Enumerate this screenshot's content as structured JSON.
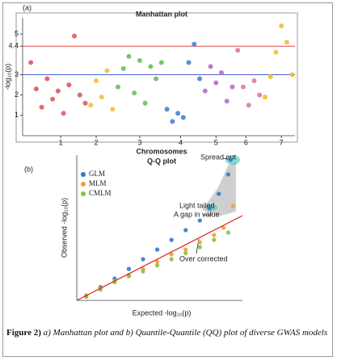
{
  "chart_data": [
    {
      "type": "scatter",
      "panel": "(a)",
      "title": "Manhattan plot",
      "xlabel": "Chromosomes",
      "ylabel": "-log₁₀(p)",
      "xlim": [
        0,
        100
      ],
      "ylim": [
        0,
        5.8
      ],
      "xticks": [
        {
          "value": 14,
          "label": "1"
        },
        {
          "value": 27,
          "label": "2"
        },
        {
          "value": 43,
          "label": "3"
        },
        {
          "value": 58,
          "label": "4"
        },
        {
          "value": 71,
          "label": "5"
        },
        {
          "value": 82,
          "label": "6"
        },
        {
          "value": 95,
          "label": "7"
        }
      ],
      "yticks": [
        1,
        2,
        3,
        {
          "value": 4.4,
          "label": "4.4"
        },
        5
      ],
      "thresholds": [
        {
          "value": 4.4,
          "color": "#e04848"
        },
        {
          "value": 3,
          "color": "#5060d8"
        }
      ],
      "series": [
        {
          "color": "#e05a5a",
          "x": [
            3,
            5,
            7,
            9,
            11,
            13,
            15,
            17,
            19,
            21,
            23
          ],
          "values": [
            3.6,
            2.3,
            1.4,
            2.8,
            1.8,
            2.2,
            1.1,
            2.5,
            4.9,
            2.0,
            1.6
          ]
        },
        {
          "color": "#f0c040",
          "x": [
            25,
            27,
            29,
            31,
            33
          ],
          "values": [
            1.5,
            2.7,
            1.9,
            3.2,
            1.3
          ]
        },
        {
          "color": "#6abf5e",
          "x": [
            35,
            37,
            39,
            41,
            43,
            45,
            47,
            49,
            51
          ],
          "values": [
            2.4,
            3.3,
            3.9,
            2.1,
            3.7,
            1.6,
            3.4,
            2.8,
            3.6
          ]
        },
        {
          "color": "#4a7fd0",
          "x": [
            53,
            55,
            57,
            59,
            61,
            63,
            65
          ],
          "values": [
            1.3,
            0.7,
            1.1,
            0.9,
            3.6,
            4.5,
            2.8
          ]
        },
        {
          "color": "#b070c8",
          "x": [
            67,
            69,
            71,
            73,
            75,
            77
          ],
          "values": [
            2.2,
            3.4,
            2.6,
            3.1,
            1.7,
            2.4
          ]
        },
        {
          "color": "#e07aa0",
          "x": [
            79,
            81,
            83,
            85,
            87
          ],
          "values": [
            4.2,
            2.4,
            1.5,
            2.7,
            2.0
          ]
        },
        {
          "color": "#f0c030",
          "x": [
            89,
            91,
            93,
            95,
            97,
            99
          ],
          "values": [
            1.9,
            2.9,
            4.1,
            5.4,
            4.6,
            3.0
          ]
        }
      ]
    },
    {
      "type": "scatter",
      "panel": "(b)",
      "title": "Q-Q plot",
      "xlabel": "Expected  -log₁₀(p)",
      "ylabel": "Observed  -log₁₀(p)",
      "xlim": [
        0,
        3.5
      ],
      "ylim": [
        0,
        6
      ],
      "reference_line": {
        "color": "#e02020"
      },
      "series": [
        {
          "name": "GLM",
          "color": "#2a7ad0",
          "x": [
            0.2,
            0.5,
            0.8,
            1.1,
            1.4,
            1.7,
            2.0,
            2.3,
            2.6,
            2.8,
            3.0,
            3.2,
            3.25
          ],
          "values": [
            0.2,
            0.55,
            0.9,
            1.3,
            1.7,
            2.1,
            2.5,
            2.9,
            3.3,
            3.8,
            4.4,
            5.2,
            5.8
          ]
        },
        {
          "name": "MLM",
          "color": "#f0a030",
          "x": [
            0.2,
            0.5,
            0.8,
            1.1,
            1.4,
            1.7,
            2.0,
            2.3,
            2.6,
            2.9,
            3.1,
            3.3
          ],
          "values": [
            0.2,
            0.5,
            0.8,
            1.05,
            1.3,
            1.6,
            1.9,
            2.1,
            2.4,
            2.7,
            3.0,
            3.9
          ]
        },
        {
          "name": "CMLM",
          "color": "#8ac040",
          "x": [
            0.2,
            0.5,
            0.8,
            1.1,
            1.4,
            1.7,
            2.0,
            2.3,
            2.6,
            2.9,
            3.2
          ],
          "values": [
            0.15,
            0.45,
            0.75,
            1.0,
            1.2,
            1.45,
            1.7,
            1.95,
            2.2,
            2.5,
            2.8
          ]
        }
      ],
      "annotations": [
        "Spread out",
        "Light tailed",
        "A gap in value",
        "Over corrected"
      ]
    }
  ],
  "caption": {
    "label": "Figure 2)",
    "text": "a) Manhattan plot and b) Quantile-Quantile (QQ) plot of diverse GWAS models"
  }
}
